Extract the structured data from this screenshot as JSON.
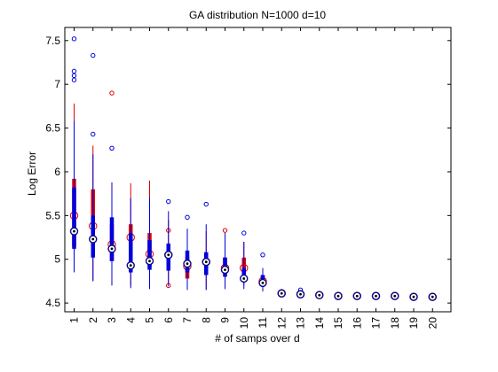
{
  "chart_data": {
    "type": "box",
    "title": "GA distribution N=1000 d=10",
    "xlabel": "# of samps over d",
    "ylabel": "Log Error",
    "categories": [
      "1",
      "2",
      "3",
      "4",
      "5",
      "6",
      "7",
      "8",
      "9",
      "10",
      "11",
      "12",
      "13",
      "14",
      "15",
      "16",
      "17",
      "18",
      "19",
      "20"
    ],
    "ylim": [
      4.4,
      7.65
    ],
    "yticks": [
      4.5,
      5,
      5.5,
      6,
      6.5,
      7,
      7.5
    ],
    "ytick_labels": [
      "4.5",
      "5",
      "5.5",
      "6",
      "6.5",
      "7",
      "7.5"
    ],
    "grid": false,
    "series": [
      {
        "color": "#dd0000",
        "boxes": [
          {
            "q1": 5.15,
            "median": 5.5,
            "q3": 5.92,
            "wlo": 4.85,
            "whi": 6.78,
            "mean": 5.5,
            "outliers": []
          },
          {
            "q1": 5.05,
            "median": 5.38,
            "q3": 5.8,
            "wlo": 4.75,
            "whi": 6.3,
            "mean": 5.38,
            "outliers": []
          },
          {
            "q1": 4.98,
            "median": 5.17,
            "q3": 5.4,
            "wlo": 4.72,
            "whi": 5.7,
            "mean": 5.17,
            "outliers": [
              6.9
            ]
          },
          {
            "q1": 4.98,
            "median": 5.25,
            "q3": 5.4,
            "wlo": 4.7,
            "whi": 5.87,
            "mean": 5.25,
            "outliers": []
          },
          {
            "q1": 4.92,
            "median": 5.06,
            "q3": 5.3,
            "wlo": 4.72,
            "whi": 5.9,
            "mean": 5.06,
            "outliers": []
          },
          {
            "q1": 4.9,
            "median": 5.05,
            "q3": 5.18,
            "wlo": 4.72,
            "whi": 5.45,
            "mean": 5.05,
            "outliers": [
              5.33,
              4.7
            ]
          },
          {
            "q1": 4.78,
            "median": 4.92,
            "q3": 5.03,
            "wlo": 4.65,
            "whi": 5.3,
            "mean": 4.92,
            "outliers": []
          },
          {
            "q1": 4.82,
            "median": 4.97,
            "q3": 5.08,
            "wlo": 4.65,
            "whi": 5.32,
            "mean": 4.97,
            "outliers": []
          },
          {
            "q1": 4.83,
            "median": 4.9,
            "q3": 5.02,
            "wlo": 4.68,
            "whi": 5.3,
            "mean": 4.9,
            "outliers": [
              5.33
            ]
          },
          {
            "q1": 4.8,
            "median": 4.9,
            "q3": 5.02,
            "wlo": 4.7,
            "whi": 5.2,
            "mean": 4.9,
            "outliers": []
          },
          {
            "q1": 4.7,
            "median": 4.75,
            "q3": 4.82,
            "wlo": 4.63,
            "whi": 4.9,
            "mean": 4.75,
            "outliers": []
          },
          {
            "q1": 4.6,
            "median": 4.61,
            "q3": 4.63,
            "wlo": 4.59,
            "whi": 4.66,
            "mean": 4.61,
            "outliers": []
          },
          {
            "q1": 4.59,
            "median": 4.6,
            "q3": 4.62,
            "wlo": 4.58,
            "whi": 4.64,
            "mean": 4.6,
            "outliers": []
          },
          {
            "q1": 4.58,
            "median": 4.59,
            "q3": 4.6,
            "wlo": 4.57,
            "whi": 4.62,
            "mean": 4.59,
            "outliers": []
          },
          {
            "q1": 4.57,
            "median": 4.58,
            "q3": 4.59,
            "wlo": 4.56,
            "whi": 4.61,
            "mean": 4.58,
            "outliers": []
          },
          {
            "q1": 4.57,
            "median": 4.58,
            "q3": 4.59,
            "wlo": 4.56,
            "whi": 4.6,
            "mean": 4.58,
            "outliers": []
          },
          {
            "q1": 4.57,
            "median": 4.58,
            "q3": 4.58,
            "wlo": 4.56,
            "whi": 4.59,
            "mean": 4.58,
            "outliers": []
          },
          {
            "q1": 4.57,
            "median": 4.58,
            "q3": 4.58,
            "wlo": 4.56,
            "whi": 4.59,
            "mean": 4.58,
            "outliers": []
          },
          {
            "q1": 4.56,
            "median": 4.57,
            "q3": 4.58,
            "wlo": 4.55,
            "whi": 4.59,
            "mean": 4.57,
            "outliers": []
          },
          {
            "q1": 4.56,
            "median": 4.57,
            "q3": 4.58,
            "wlo": 4.55,
            "whi": 4.59,
            "mean": 4.57,
            "outliers": []
          }
        ]
      },
      {
        "color": "#0000dd",
        "boxes": [
          {
            "q1": 5.12,
            "median": 5.32,
            "q3": 5.82,
            "wlo": 4.85,
            "whi": 6.58,
            "mean": 5.32,
            "outliers": [
              7.52,
              7.15,
              7.1,
              7.05
            ]
          },
          {
            "q1": 5.02,
            "median": 5.23,
            "q3": 5.5,
            "wlo": 4.75,
            "whi": 6.2,
            "mean": 5.23,
            "outliers": [
              7.33,
              6.43
            ]
          },
          {
            "q1": 4.98,
            "median": 5.12,
            "q3": 5.48,
            "wlo": 4.7,
            "whi": 5.88,
            "mean": 5.12,
            "outliers": [
              6.27
            ]
          },
          {
            "q1": 4.85,
            "median": 4.93,
            "q3": 5.3,
            "wlo": 4.67,
            "whi": 5.7,
            "mean": 4.93,
            "outliers": []
          },
          {
            "q1": 4.88,
            "median": 4.98,
            "q3": 5.22,
            "wlo": 4.66,
            "whi": 5.7,
            "mean": 4.98,
            "outliers": []
          },
          {
            "q1": 4.87,
            "median": 5.05,
            "q3": 5.18,
            "wlo": 4.69,
            "whi": 5.55,
            "mean": 5.05,
            "outliers": [
              5.66
            ]
          },
          {
            "q1": 4.85,
            "median": 4.95,
            "q3": 5.1,
            "wlo": 4.65,
            "whi": 5.35,
            "mean": 4.95,
            "outliers": [
              5.48
            ]
          },
          {
            "q1": 4.82,
            "median": 4.97,
            "q3": 5.08,
            "wlo": 4.65,
            "whi": 5.4,
            "mean": 4.97,
            "outliers": [
              5.63
            ]
          },
          {
            "q1": 4.8,
            "median": 4.88,
            "q3": 5.02,
            "wlo": 4.66,
            "whi": 5.3,
            "mean": 4.88,
            "outliers": []
          },
          {
            "q1": 4.74,
            "median": 4.78,
            "q3": 4.9,
            "wlo": 4.66,
            "whi": 5.2,
            "mean": 4.78,
            "outliers": [
              5.3
            ]
          },
          {
            "q1": 4.69,
            "median": 4.73,
            "q3": 4.82,
            "wlo": 4.64,
            "whi": 4.9,
            "mean": 4.73,
            "outliers": [
              5.05
            ]
          },
          {
            "q1": 4.6,
            "median": 4.61,
            "q3": 4.63,
            "wlo": 4.58,
            "whi": 4.65,
            "mean": 4.61,
            "outliers": []
          },
          {
            "q1": 4.59,
            "median": 4.6,
            "q3": 4.62,
            "wlo": 4.58,
            "whi": 4.64,
            "mean": 4.6,
            "outliers": [
              4.65
            ]
          },
          {
            "q1": 4.58,
            "median": 4.59,
            "q3": 4.6,
            "wlo": 4.57,
            "whi": 4.62,
            "mean": 4.59,
            "outliers": []
          },
          {
            "q1": 4.57,
            "median": 4.58,
            "q3": 4.59,
            "wlo": 4.56,
            "whi": 4.6,
            "mean": 4.58,
            "outliers": []
          },
          {
            "q1": 4.57,
            "median": 4.58,
            "q3": 4.59,
            "wlo": 4.56,
            "whi": 4.6,
            "mean": 4.58,
            "outliers": []
          },
          {
            "q1": 4.57,
            "median": 4.58,
            "q3": 4.58,
            "wlo": 4.56,
            "whi": 4.59,
            "mean": 4.58,
            "outliers": []
          },
          {
            "q1": 4.57,
            "median": 4.58,
            "q3": 4.58,
            "wlo": 4.56,
            "whi": 4.59,
            "mean": 4.58,
            "outliers": []
          },
          {
            "q1": 4.56,
            "median": 4.57,
            "q3": 4.58,
            "wlo": 4.55,
            "whi": 4.59,
            "mean": 4.57,
            "outliers": []
          },
          {
            "q1": 4.56,
            "median": 4.57,
            "q3": 4.58,
            "wlo": 4.55,
            "whi": 4.59,
            "mean": 4.57,
            "outliers": []
          }
        ]
      }
    ]
  }
}
